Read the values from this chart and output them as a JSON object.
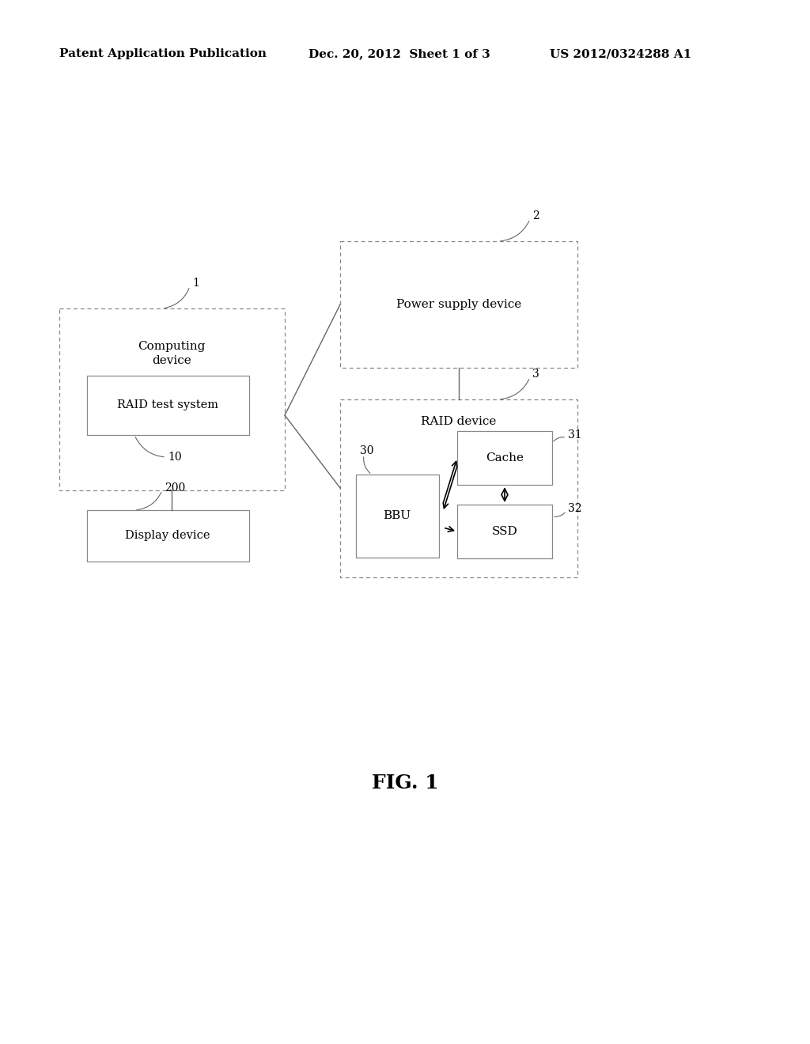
{
  "bg_color": "#ffffff",
  "header_left": "Patent Application Publication",
  "header_mid": "Dec. 20, 2012  Sheet 1 of 3",
  "header_right": "US 2012/0324288 A1",
  "fig_label": "FIG. 1",
  "line_color": "#666666",
  "box_edge_color": "#888888"
}
